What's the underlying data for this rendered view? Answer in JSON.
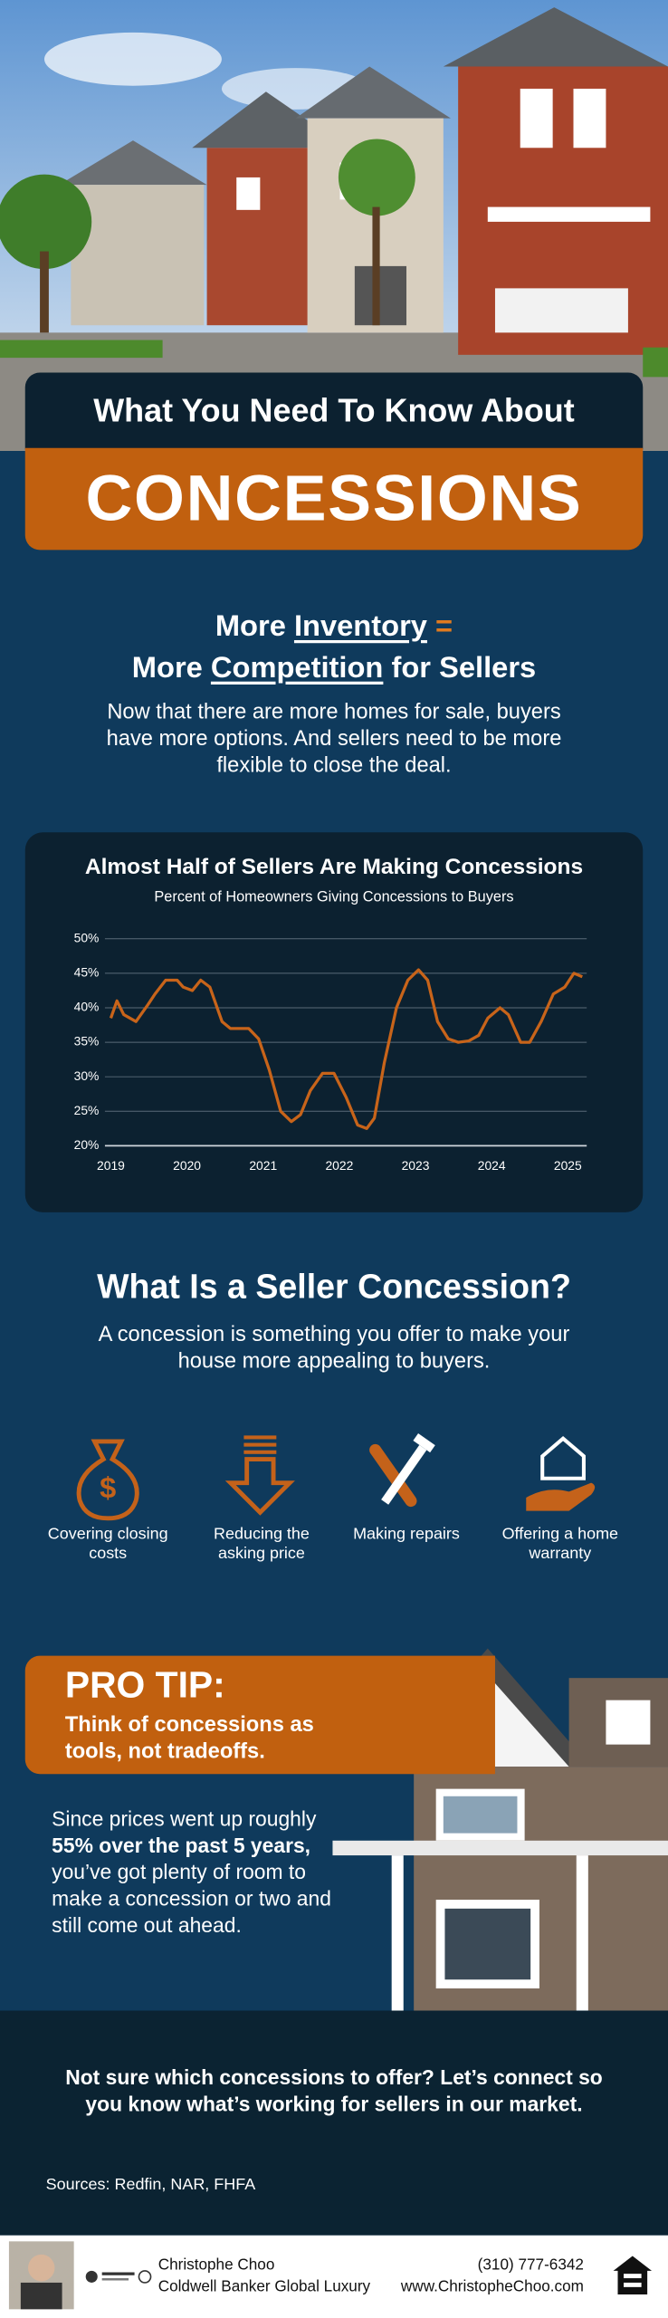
{
  "header": {
    "title": "What You Need To Know About",
    "highlight": "CONCESSIONS"
  },
  "intro": {
    "line1": [
      "More",
      "Inventory",
      "="
    ],
    "line2": [
      "More",
      "Competition",
      "for Sellers"
    ],
    "text": "Now that there are more homes for sale, buyers have more options. And sellers need to be more flexible to close the deal."
  },
  "chart_data": {
    "type": "line",
    "title": "Almost Half of Sellers Are Making Concessions",
    "subtitle": "Percent of Homeowners Giving Concessions to Buyers",
    "x": [
      2019.0,
      2019.08,
      2019.17,
      2019.33,
      2019.49,
      2019.58,
      2019.72,
      2019.87,
      2019.95,
      2020.07,
      2020.18,
      2020.3,
      2020.46,
      2020.57,
      2020.69,
      2020.81,
      2020.94,
      2021.08,
      2021.23,
      2021.37,
      2021.49,
      2021.62,
      2021.78,
      2021.93,
      2022.09,
      2022.24,
      2022.36,
      2022.46,
      2022.59,
      2022.75,
      2022.9,
      2023.04,
      2023.16,
      2023.29,
      2023.43,
      2023.56,
      2023.7,
      2023.83,
      2023.95,
      2024.11,
      2024.22,
      2024.38,
      2024.5,
      2024.65,
      2024.81,
      2024.96,
      2025.08,
      2025.19
    ],
    "values": [
      38.5,
      41,
      39,
      38,
      40.5,
      42,
      44,
      44,
      43,
      42.5,
      44,
      43,
      38,
      37,
      37,
      37,
      35.5,
      31,
      25,
      23.5,
      24.5,
      28,
      30.5,
      30.5,
      27,
      23,
      22.5,
      24,
      32,
      40,
      44,
      45.5,
      44,
      38,
      35.5,
      35,
      35.2,
      36,
      38.5,
      40,
      39,
      35,
      35,
      38,
      42,
      43,
      45,
      44.5
    ],
    "color": "#c8641a",
    "xlim": [
      2019,
      2025.19
    ],
    "xticks": [
      2019,
      2020,
      2021,
      2022,
      2023,
      2024,
      2025
    ],
    "ylim": [
      20,
      50
    ],
    "yticks": [
      {
        "value": 20,
        "label": "20%"
      },
      {
        "value": 25,
        "label": "25%"
      },
      {
        "value": 30,
        "label": "30%"
      },
      {
        "value": 35,
        "label": "35%"
      },
      {
        "value": 40,
        "label": "40%"
      },
      {
        "value": 45,
        "label": "45%"
      },
      {
        "value": 50,
        "label": "50%"
      }
    ],
    "grid": true
  },
  "concession": {
    "heading": "What Is a Seller Concession?",
    "text": "A concession is something you offer to make your house more appealing to buyers."
  },
  "items": [
    {
      "label": "Covering closing costs"
    },
    {
      "label": "Reducing the asking price"
    },
    {
      "label": "Making repairs"
    },
    {
      "label": "Offering a home warranty"
    }
  ],
  "pro_tip": {
    "title": "PRO TIP:",
    "subtitle": "Think of concessions as tools, not tradeoffs.",
    "text_parts": [
      "Since prices went up roughly",
      "55% over the past 5 years,",
      "you’ve got plenty of room to make a concession or two and still come out ahead."
    ]
  },
  "cta": "Not sure which concessions to offer? Let’s connect so you know what’s working for sellers in our market.",
  "sources": "Sources: Redfin, NAR, FHFA",
  "footer": {
    "name": "Christophe Choo",
    "company": "Coldwell Banker Global Luxury",
    "phone": "(310) 777-6342",
    "website": "www.ChristopheChoo.com"
  }
}
